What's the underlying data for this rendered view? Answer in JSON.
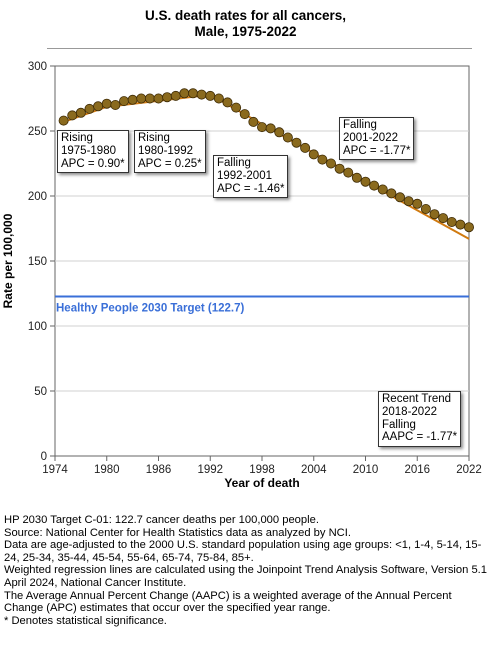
{
  "chart_data": {
    "type": "scatter",
    "title": "U.S. death rates for all cancers,",
    "subtitle": "Male,  1975-2022",
    "xlabel": "Year of death",
    "ylabel": "Rate per 100,000",
    "xlim": [
      1974,
      2022
    ],
    "ylim": [
      0,
      300
    ],
    "xticks": [
      "1974",
      "1980",
      "1986",
      "1992",
      "1998",
      "2004",
      "2010",
      "2016",
      "2022"
    ],
    "yticks": [
      "0",
      "50",
      "100",
      "150",
      "200",
      "250",
      "300"
    ],
    "grid": true,
    "series": [
      {
        "color": "#8a6a1e",
        "x": [
          1975,
          1976,
          1977,
          1978,
          1979,
          1980,
          1981,
          1982,
          1983,
          1984,
          1985,
          1986,
          1987,
          1988,
          1989,
          1990,
          1991,
          1992,
          1993,
          1994,
          1995,
          1996,
          1997,
          1998,
          1999,
          2000,
          2001,
          2002,
          2003,
          2004,
          2005,
          2006,
          2007,
          2008,
          2009,
          2010,
          2011,
          2012,
          2013,
          2014,
          2015,
          2016,
          2017,
          2018,
          2019,
          2020,
          2021,
          2022
        ],
        "values": [
          258,
          262,
          264,
          267,
          269,
          271,
          270,
          273,
          274,
          275,
          275,
          275,
          276,
          277,
          279,
          279,
          278,
          277,
          275,
          272,
          268,
          263,
          257,
          253,
          252,
          249,
          245,
          241,
          237,
          232,
          228,
          225,
          221,
          218,
          214,
          211,
          208,
          205,
          202,
          199,
          196,
          194,
          190,
          186,
          183,
          180,
          178,
          176
        ]
      }
    ],
    "segments": [
      {
        "x": [
          1975,
          1980
        ],
        "values": [
          257,
          268.6
        ]
      },
      {
        "x": [
          1980,
          1992
        ],
        "values": [
          268.6,
          277.9
        ]
      },
      {
        "x": [
          1992,
          2001
        ],
        "values": [
          277.9,
          244
        ]
      },
      {
        "x": [
          2001,
          2022
        ],
        "values": [
          244,
          167
        ]
      }
    ],
    "target_line": {
      "value": 122.7,
      "label": "Healthy People 2030 Target (122.7)",
      "color": "#3a6fd8"
    },
    "annotations": [
      {
        "lines": [
          "Rising",
          "1975-1980",
          "APC =  0.90*"
        ]
      },
      {
        "lines": [
          "Rising",
          "1980-1992",
          "APC =  0.25*"
        ]
      },
      {
        "lines": [
          "Falling",
          "1992-2001",
          "APC = -1.46*"
        ]
      },
      {
        "lines": [
          "Falling",
          "2001-2022",
          "APC = -1.77*"
        ]
      },
      {
        "lines": [
          "Recent Trend",
          "2018-2022",
          "Falling",
          "AAPC = -1.77*"
        ]
      }
    ]
  },
  "footnotes": [
    "HP 2030 Target C-01: 122.7 cancer deaths per 100,000 people.",
    "Source: National Center for Health Statistics data as analyzed by NCI.",
    "Data are age-adjusted to the 2000 U.S. standard population using age groups: <1, 1-4, 5-14, 15-24, 25-34, 35-44, 45-54, 55-64, 65-74, 75-84, 85+.",
    "Weighted regression lines are calculated using the Joinpoint Trend Analysis Software, Version 5.1 April 2024, National Cancer Institute.",
    "The Average Annual Percent Change (AAPC) is a weighted average of the Annual Percent Change (APC) estimates that occur over the specified year range.",
    "* Denotes statistical significance."
  ]
}
